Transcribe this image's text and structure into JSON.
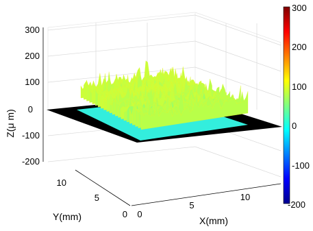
{
  "chart_data": {
    "type": "surface",
    "title": "",
    "xlabel": "X(mm)",
    "ylabel": "Y(mm)",
    "zlabel": "Z(μ m)",
    "x_ticks": [
      "0",
      "5",
      "10"
    ],
    "y_ticks": [
      "0",
      "5",
      "10"
    ],
    "z_ticks": [
      "300",
      "200",
      "100",
      "0",
      "-100",
      "-200"
    ],
    "xlim": [
      0,
      15
    ],
    "ylim": [
      0,
      15
    ],
    "zlim": [
      -200,
      300
    ],
    "grid": true,
    "colormap": "jet",
    "colorbar": {
      "range": [
        -200,
        300
      ],
      "ticks": [
        "300",
        "200",
        "100",
        "0",
        "-100",
        "-200"
      ]
    },
    "colors": {
      "base_plane": "#000000",
      "cavity_floor": "#33eedd",
      "surface_low": "#44ffb0",
      "surface_mid": "#c8ff3c",
      "surface_peak": "#f4f020"
    }
  }
}
